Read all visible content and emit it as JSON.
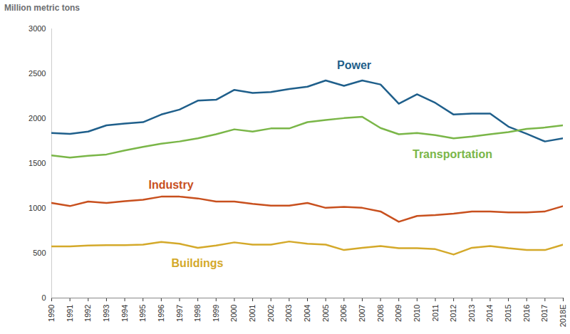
{
  "chart_data": {
    "type": "line",
    "y_label": "Million metric tons",
    "x": [
      1990,
      1991,
      1992,
      1993,
      1994,
      1995,
      1996,
      1997,
      1998,
      1999,
      2000,
      2001,
      2002,
      2003,
      2004,
      2005,
      2006,
      2007,
      2008,
      2009,
      2010,
      2011,
      2012,
      2013,
      2014,
      2015,
      2016,
      2017,
      2018
    ],
    "xlim": [
      1990,
      2018
    ],
    "xticks": [
      1990,
      1991,
      1992,
      1993,
      1994,
      1995,
      1996,
      1997,
      1998,
      1999,
      2000,
      2001,
      2002,
      2003,
      2004,
      2005,
      2006,
      2007,
      2008,
      2009,
      2010,
      2011,
      2012,
      2013,
      2014,
      2015,
      2016,
      2017,
      {
        "value": 2018,
        "label": "2018E"
      }
    ],
    "ylim": [
      0,
      3000
    ],
    "yticks": [
      0,
      500,
      1000,
      1500,
      2000,
      2500,
      3000
    ],
    "grid": false,
    "series": [
      {
        "name": "Power",
        "color": "#1f5f8b",
        "values": [
          1840,
          1830,
          1855,
          1925,
          1945,
          1960,
          2045,
          2100,
          2200,
          2210,
          2320,
          2285,
          2295,
          2330,
          2355,
          2425,
          2365,
          2425,
          2380,
          2165,
          2270,
          2175,
          2045,
          2055,
          2055,
          1910,
          1830,
          1745,
          1780
        ]
      },
      {
        "name": "Transportation",
        "color": "#7ab648",
        "values": [
          1590,
          1565,
          1585,
          1600,
          1645,
          1685,
          1720,
          1745,
          1780,
          1825,
          1880,
          1855,
          1890,
          1890,
          1960,
          1985,
          2005,
          2020,
          1895,
          1825,
          1840,
          1815,
          1780,
          1800,
          1825,
          1850,
          1885,
          1900,
          1925
        ]
      },
      {
        "name": "Industry",
        "color": "#c8501e",
        "values": [
          1060,
          1025,
          1075,
          1060,
          1080,
          1095,
          1130,
          1130,
          1110,
          1075,
          1075,
          1050,
          1030,
          1030,
          1060,
          1005,
          1015,
          1005,
          965,
          850,
          915,
          925,
          940,
          965,
          965,
          955,
          955,
          965,
          1025
        ]
      },
      {
        "name": "Buildings",
        "color": "#d4a92a",
        "values": [
          575,
          575,
          585,
          590,
          590,
          595,
          625,
          605,
          560,
          585,
          620,
          595,
          595,
          630,
          605,
          595,
          535,
          560,
          580,
          555,
          555,
          545,
          485,
          560,
          580,
          555,
          535,
          535,
          595
        ]
      }
    ]
  }
}
